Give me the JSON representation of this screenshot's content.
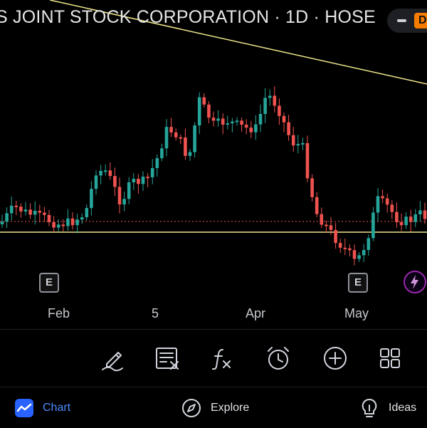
{
  "header": {
    "title": "S JOINT STOCK CORPORATION · 1D · HOSE",
    "badge_letter": "D"
  },
  "chart": {
    "x_labels": [
      "Feb",
      "5",
      "Apr",
      "May"
    ],
    "earnings_marker": "E",
    "colors": {
      "up": "#26a69a",
      "down": "#ef5350",
      "line": "#f0e68c",
      "dotted": "#ef5350"
    }
  },
  "toolbar": {
    "tools": [
      "pencil-icon",
      "edit-list-icon",
      "function-icon",
      "alarm-icon",
      "add-circle-icon",
      "grid-icon"
    ]
  },
  "nav": {
    "chart": "Chart",
    "explore": "Explore",
    "ideas": "Ideas"
  }
}
